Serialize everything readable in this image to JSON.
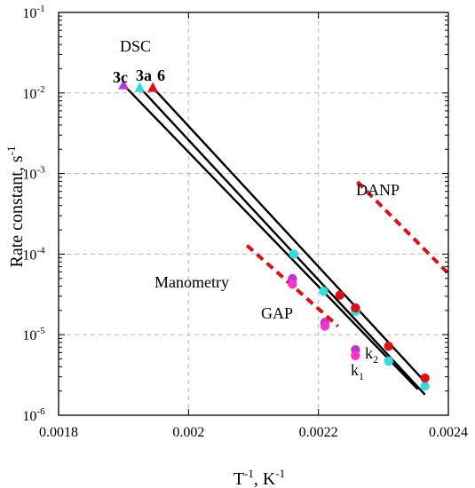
{
  "chart_data": {
    "type": "scatter",
    "xlabel": "T",
    "xlabel_sup": "-1",
    "xlabel_tail": ", K",
    "xlabel_tail_sup": "-1",
    "ylabel": "Rate constant, s",
    "ylabel_sup": "-1",
    "xlim": [
      0.0018,
      0.0024
    ],
    "ylim_log10": [
      -6,
      -1
    ],
    "y_scale": "log",
    "grid": true,
    "x_ticks": [
      {
        "value": 0.0018,
        "label": "0.0018"
      },
      {
        "value": 0.002,
        "label": "0.002"
      },
      {
        "value": 0.0022,
        "label": "0.0022"
      },
      {
        "value": 0.0024,
        "label": "0.0024"
      }
    ],
    "y_ticks": [
      {
        "exp": -6,
        "base": "10",
        "sup": "-6"
      },
      {
        "exp": -5,
        "base": "10",
        "sup": "-5"
      },
      {
        "exp": -4,
        "base": "10",
        "sup": "-4"
      },
      {
        "exp": -3,
        "base": "10",
        "sup": "-3"
      },
      {
        "exp": -2,
        "base": "10",
        "sup": "-2"
      },
      {
        "exp": -1,
        "base": "10",
        "sup": "-1"
      }
    ],
    "series": [
      {
        "name": "3c",
        "color": "#bb33dd",
        "dsc_point": {
          "x": 0.0019,
          "y": 0.0126
        },
        "points": [
          {
            "x": 0.00216,
            "y": 4.95e-05,
            "color": "#bb33dd"
          },
          {
            "x": 0.00216,
            "y": 4.25e-05,
            "color": "#ff33cc"
          },
          {
            "x": 0.00221,
            "y": 1.42e-05,
            "color": "#bb33dd"
          },
          {
            "x": 0.00221,
            "y": 1.28e-05,
            "color": "#ff33cc"
          },
          {
            "x": 0.002257,
            "y": 6.5e-06,
            "color": "#bb33dd"
          },
          {
            "x": 0.002257,
            "y": 5.5e-06,
            "color": "#ff33cc"
          }
        ],
        "fit": [
          {
            "x": 0.0019,
            "y": 0.0126
          },
          {
            "x": 0.002353,
            "y": 2.1e-06
          }
        ]
      },
      {
        "name": "3a",
        "color": "#33dddd",
        "dsc_point": {
          "x": 0.001925,
          "y": 0.0117
        },
        "points": [
          {
            "x": 0.002162,
            "y": 0.0001
          },
          {
            "x": 0.002208,
            "y": 3.45e-05
          },
          {
            "x": 0.002257,
            "y": 1.95e-05
          },
          {
            "x": 0.002308,
            "y": 4.7e-06
          },
          {
            "x": 0.002364,
            "y": 2.3e-06
          }
        ],
        "fit": [
          {
            "x": 0.001925,
            "y": 0.0117
          },
          {
            "x": 0.002364,
            "y": 1.8e-06
          }
        ]
      },
      {
        "name": "6",
        "color": "#dd1111",
        "dsc_point": {
          "x": 0.001945,
          "y": 0.0117
        },
        "points": [
          {
            "x": 0.002233,
            "y": 3.1e-05
          },
          {
            "x": 0.002257,
            "y": 2.15e-05
          },
          {
            "x": 0.002308,
            "y": 7.2e-06
          },
          {
            "x": 0.002364,
            "y": 2.9e-06
          }
        ],
        "fit": [
          {
            "x": 0.001945,
            "y": 0.0117
          },
          {
            "x": 0.002364,
            "y": 2.6e-06
          }
        ]
      }
    ],
    "reference_lines": [
      {
        "name": "GAP",
        "color": "#dd1111",
        "points": [
          {
            "x": 0.00209,
            "y": 0.000128
          },
          {
            "x": 0.00223,
            "y": 1.28e-05
          }
        ]
      },
      {
        "name": "DANP",
        "color": "#dd1111",
        "points": [
          {
            "x": 0.00226,
            "y": 0.00079
          },
          {
            "x": 0.0024,
            "y": 5.75e-05
          }
        ]
      }
    ],
    "annotations": {
      "dsc": "DSC",
      "manometry": "Manometry",
      "gap": "GAP",
      "danp": "DANP",
      "k1_base": "k",
      "k1_sub": "1",
      "k2_base": "k",
      "k2_sub": "2"
    }
  }
}
